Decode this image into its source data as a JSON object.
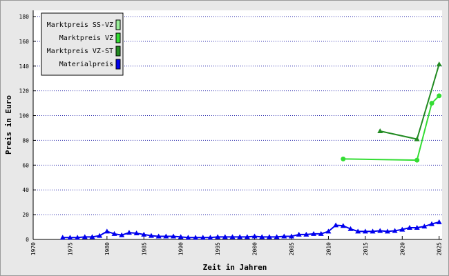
{
  "chart_data": {
    "type": "line",
    "xlabel": "Zeit in Jahren",
    "ylabel": "Preis in Euro",
    "xlim": [
      1970,
      2025.4
    ],
    "xticks": [
      1970,
      1975,
      1980,
      1985,
      1990,
      1995,
      2000,
      2005,
      2010,
      2015,
      2020,
      2025
    ],
    "ylim": [
      0,
      185
    ],
    "yticks": [
      0,
      20,
      40,
      60,
      80,
      100,
      120,
      140,
      160,
      180
    ],
    "grid": true,
    "legend": "top-left",
    "series": [
      {
        "name": "Marktpreis SS-VZ",
        "color": "#99ee99",
        "marker": "circle",
        "x": [],
        "values": []
      },
      {
        "name": "Marktpreis VZ",
        "color": "#33dd33",
        "marker": "circle",
        "x": [
          2012,
          2022,
          2024,
          2025
        ],
        "values": [
          65,
          64,
          110,
          116
        ]
      },
      {
        "name": "Marktpreis VZ-ST",
        "color": "#228b22",
        "marker": "triangle",
        "x": [
          2017,
          2022,
          2025
        ],
        "values": [
          87.5,
          81,
          141.5
        ]
      },
      {
        "name": "Materialpreis",
        "color": "#0000ee",
        "marker": "triangle",
        "x": [
          1974,
          1975,
          1976,
          1977,
          1978,
          1979,
          1980,
          1981,
          1982,
          1983,
          1984,
          1985,
          1986,
          1987,
          1988,
          1989,
          1990,
          1991,
          1992,
          1993,
          1994,
          1995,
          1996,
          1997,
          1998,
          1999,
          2000,
          2001,
          2002,
          2003,
          2004,
          2005,
          2006,
          2007,
          2008,
          2009,
          2010,
          2011,
          2012,
          2013,
          2014,
          2015,
          2016,
          2017,
          2018,
          2019,
          2020,
          2021,
          2022,
          2023,
          2024,
          2025
        ],
        "values": [
          1.5,
          1.5,
          1.5,
          2,
          2,
          3,
          6.5,
          4.5,
          3.5,
          5.5,
          5,
          4,
          3,
          2.5,
          2.5,
          2.5,
          2,
          1.5,
          1.5,
          1.5,
          1.5,
          2,
          2,
          2,
          2,
          2,
          2.5,
          2,
          2,
          2,
          2.5,
          2.5,
          4,
          4,
          4.5,
          4.5,
          6.5,
          11.5,
          11,
          8.5,
          6.5,
          6.5,
          6.5,
          7,
          6.5,
          7,
          8,
          9.5,
          9.5,
          10.5,
          12.5,
          14
        ]
      }
    ]
  }
}
